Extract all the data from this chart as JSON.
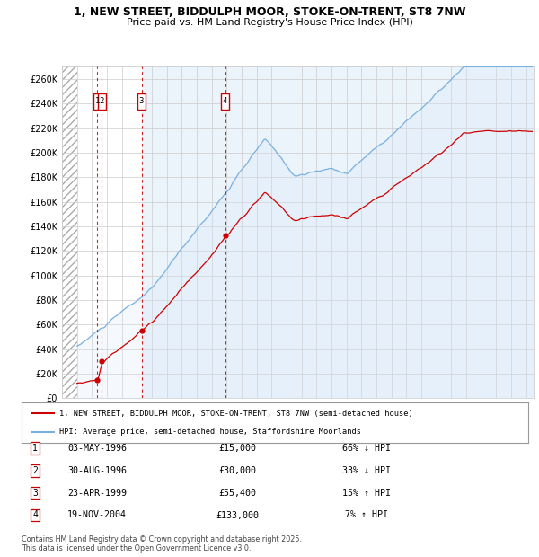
{
  "title_line1": "1, NEW STREET, BIDDULPH MOOR, STOKE-ON-TRENT, ST8 7NW",
  "title_line2": "Price paid vs. HM Land Registry's House Price Index (HPI)",
  "ylim": [
    0,
    270000
  ],
  "yticks": [
    0,
    20000,
    40000,
    60000,
    80000,
    100000,
    120000,
    140000,
    160000,
    180000,
    200000,
    220000,
    240000,
    260000
  ],
  "ytick_labels": [
    "£0",
    "£20K",
    "£40K",
    "£60K",
    "£80K",
    "£100K",
    "£120K",
    "£140K",
    "£160K",
    "£180K",
    "£200K",
    "£220K",
    "£240K",
    "£260K"
  ],
  "xlim": [
    1994.0,
    2025.5
  ],
  "background_color": "#ffffff",
  "grid_color": "#cccccc",
  "red_line_color": "#cc0000",
  "blue_line_color": "#7ab0e0",
  "blue_fill_color": "#d8e8f8",
  "sales": [
    {
      "num": 1,
      "year": 1996.35,
      "price": 15000,
      "label": "1"
    },
    {
      "num": 2,
      "year": 1996.66,
      "price": 30000,
      "label": "2"
    },
    {
      "num": 3,
      "year": 1999.31,
      "price": 55400,
      "label": "3"
    },
    {
      "num": 4,
      "year": 2004.89,
      "price": 133000,
      "label": "4"
    }
  ],
  "transactions": [
    {
      "num": 1,
      "date": "03-MAY-1996",
      "price": "£15,000",
      "hpi": "66% ↓ HPI"
    },
    {
      "num": 2,
      "date": "30-AUG-1996",
      "price": "£30,000",
      "hpi": "33% ↓ HPI"
    },
    {
      "num": 3,
      "date": "23-APR-1999",
      "price": "£55,400",
      "hpi": "15% ↑ HPI"
    },
    {
      "num": 4,
      "date": "19-NOV-2004",
      "price": "£133,000",
      "hpi": "7% ↑ HPI"
    }
  ],
  "legend_red": "1, NEW STREET, BIDDULPH MOOR, STOKE-ON-TRENT, ST8 7NW (semi-detached house)",
  "legend_blue": "HPI: Average price, semi-detached house, Staffordshire Moorlands",
  "footer": "Contains HM Land Registry data © Crown copyright and database right 2025.\nThis data is licensed under the Open Government Licence v3.0."
}
